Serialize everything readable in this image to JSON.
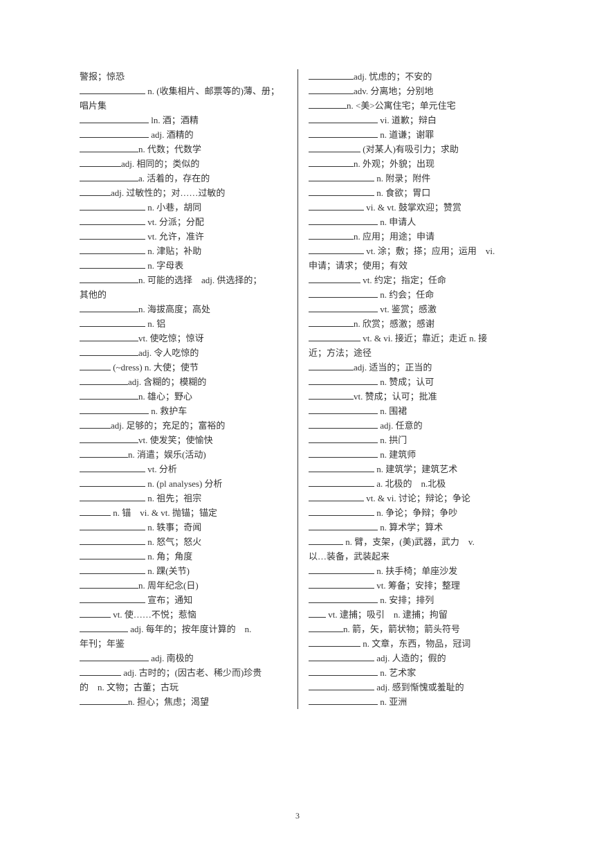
{
  "page_number": "3",
  "left": [
    {
      "blank_w": "",
      "text": "警报；惊恐"
    },
    {
      "blank_w": "w95",
      "text": " n. (收集相片、邮票等的)薄、册；"
    },
    {
      "blank_w": "",
      "text": "唱片集"
    },
    {
      "blank_w": "w100",
      "text": " ln. 酒；酒精"
    },
    {
      "blank_w": "w100",
      "text": " adj. 酒精的"
    },
    {
      "blank_w": "w85",
      "text": "n. 代数；代数学"
    },
    {
      "blank_w": "w60",
      "text": "adj. 相同的；类似的"
    },
    {
      "blank_w": "w85",
      "text": "a. 活着的，存在的"
    },
    {
      "blank_w": "w45",
      "text": "adj. 过敏性的；对……过敏的"
    },
    {
      "blank_w": "w95",
      "text": " n. 小巷，胡同"
    },
    {
      "blank_w": "w95",
      "text": " vt. 分派；分配"
    },
    {
      "blank_w": "w95",
      "text": " vt. 允许，准许"
    },
    {
      "blank_w": "w95",
      "text": " n. 津贴；补助"
    },
    {
      "blank_w": "w95",
      "text": " n. 字母表"
    },
    {
      "blank_w": "w85",
      "text": "n. 可能的选择　adj. 供选择的；"
    },
    {
      "blank_w": "",
      "text": "其他的"
    },
    {
      "blank_w": "w85",
      "text": "n. 海拔高度；高处"
    },
    {
      "blank_w": "w95",
      "text": " n. 铝"
    },
    {
      "blank_w": "w85",
      "text": "vt. 使吃惊；惊讶"
    },
    {
      "blank_w": "w85",
      "text": "adj. 令人吃惊的"
    },
    {
      "blank_w": "w45",
      "text": " (~dress) n. 大使；使节"
    },
    {
      "blank_w": "w70",
      "text": "adj. 含糊的；模糊的"
    },
    {
      "blank_w": "w85",
      "text": "n. 雄心；野心"
    },
    {
      "blank_w": "w100",
      "text": " n. 救护车"
    },
    {
      "blank_w": "w45",
      "text": "adj. 足够的；充足的；富裕的"
    },
    {
      "blank_w": "w85",
      "text": "vt. 使发笑；使愉快"
    },
    {
      "blank_w": "w70",
      "text": "n. 消遣；娱乐(活动)"
    },
    {
      "blank_w": "w95",
      "text": " vt. 分析"
    },
    {
      "blank_w": "w95",
      "text": " n. (pl analyses) 分析"
    },
    {
      "blank_w": "w95",
      "text": " n. 祖先；祖宗"
    },
    {
      "blank_w": "w45",
      "text": " n. 锚　vi. & vt. 抛锚；锚定"
    },
    {
      "blank_w": "w95",
      "text": " n. 轶事；奇闻"
    },
    {
      "blank_w": "w95",
      "text": " n. 怒气；怒火"
    },
    {
      "blank_w": "w95",
      "text": " n. 角；角度"
    },
    {
      "blank_w": "w95",
      "text": " n. 踝(关节)"
    },
    {
      "blank_w": "w85",
      "text": "n. 周年纪念(日)"
    },
    {
      "blank_w": "w95",
      "text": " 宣布；通知"
    },
    {
      "blank_w": "w45",
      "text": " vt. 使……不悦；惹恼"
    },
    {
      "blank_w": "w70",
      "text": " adj. 每年的；按年度计算的　n."
    },
    {
      "blank_w": "",
      "text": "年刊；年鉴"
    },
    {
      "blank_w": "w100",
      "text": " adj. 南极的"
    },
    {
      "blank_w": "w60",
      "text": " adj. 古时的；(因古老、稀少而)珍贵"
    },
    {
      "blank_w": "",
      "text": "的　n. 文物；古董；古玩"
    },
    {
      "blank_w": "w70",
      "text": "n. 担心；焦虑；渴望"
    }
  ],
  "right": [
    {
      "blank_w": "w65",
      "text": "adj. 忧虑的；不安的"
    },
    {
      "blank_w": "w65",
      "text": "adv. 分离地；分别地"
    },
    {
      "blank_w": "w55",
      "text": "n. <美>公寓住宅；单元住宅"
    },
    {
      "blank_w": "w100",
      "text": " vi. 道歉；辩白"
    },
    {
      "blank_w": "w100",
      "text": " n. 道谦；谢罪"
    },
    {
      "blank_w": "w75",
      "text": " (对某人)有吸引力；求助"
    },
    {
      "blank_w": "w65",
      "text": "n. 外观；外貌；出现"
    },
    {
      "blank_w": "w95",
      "text": " n. 附录；附件"
    },
    {
      "blank_w": "w95",
      "text": " n. 食欲；胃口"
    },
    {
      "blank_w": "w80",
      "text": " vi. & vt. 鼓掌欢迎；赞赏"
    },
    {
      "blank_w": "w100",
      "text": " n. 申请人"
    },
    {
      "blank_w": "w65",
      "text": "n. 应用；用途；申请"
    },
    {
      "blank_w": "w80",
      "text": " vt. 涂；敷；搽；应用；运用　vi."
    },
    {
      "blank_w": "",
      "text": "申请；请求；使用；有效"
    },
    {
      "blank_w": "w75",
      "text": " vt. 约定；指定；任命"
    },
    {
      "blank_w": "w100",
      "text": " n. 约会；任命"
    },
    {
      "blank_w": "w100",
      "text": " vt. 鉴赏；感激"
    },
    {
      "blank_w": "w65",
      "text": "n. 欣赏；感激；感谢"
    },
    {
      "blank_w": "w75",
      "text": " vt. & vi. 接近；靠近；走近 n. 接"
    },
    {
      "blank_w": "",
      "text": "近；方法；途径"
    },
    {
      "blank_w": "w65",
      "text": "adj. 适当的；正当的"
    },
    {
      "blank_w": "w100",
      "text": " n. 赞成；认可"
    },
    {
      "blank_w": "w65",
      "text": "vt. 赞成；认可；批准"
    },
    {
      "blank_w": "w100",
      "text": " n. 围裙"
    },
    {
      "blank_w": "w100",
      "text": " adj. 任意的"
    },
    {
      "blank_w": "w100",
      "text": " n. 拱门"
    },
    {
      "blank_w": "w100",
      "text": " n. 建筑师"
    },
    {
      "blank_w": "w95",
      "text": " n. 建筑学；建筑艺术"
    },
    {
      "blank_w": "w95",
      "text": " a. 北极的　n.北极"
    },
    {
      "blank_w": "w80",
      "text": " vt. & vi. 讨论；辩论；争论"
    },
    {
      "blank_w": "w95",
      "text": " n. 争论；争辩；争吵"
    },
    {
      "blank_w": "w100",
      "text": " n. 算术学；算术"
    },
    {
      "blank_w": "w50",
      "text": " n. 臂，支架，(美)武器，武力　v."
    },
    {
      "blank_w": "",
      "text": "以…装备，武装起来"
    },
    {
      "blank_w": "w95",
      "text": " n. 扶手椅；单座沙发"
    },
    {
      "blank_w": "w95",
      "text": " vt. 筹备；安排；整理"
    },
    {
      "blank_w": "w100",
      "text": " n. 安排；排列"
    },
    {
      "blank_w": "w25",
      "text": " vt. 逮捕；吸引　n. 逮捕；拘留"
    },
    {
      "blank_w": "w50",
      "text": "n. 箭，矢，箭状物；箭头符号"
    },
    {
      "blank_w": "w75",
      "text": " n. 文章，东西，物品，冠词"
    },
    {
      "blank_w": "w95",
      "text": " adj. 人造的；假的"
    },
    {
      "blank_w": "w100",
      "text": " n. 艺术家"
    },
    {
      "blank_w": "w95",
      "text": " adj. 感到惭愧或羞耻的"
    },
    {
      "blank_w": "w100",
      "text": " n. 亚洲"
    }
  ]
}
